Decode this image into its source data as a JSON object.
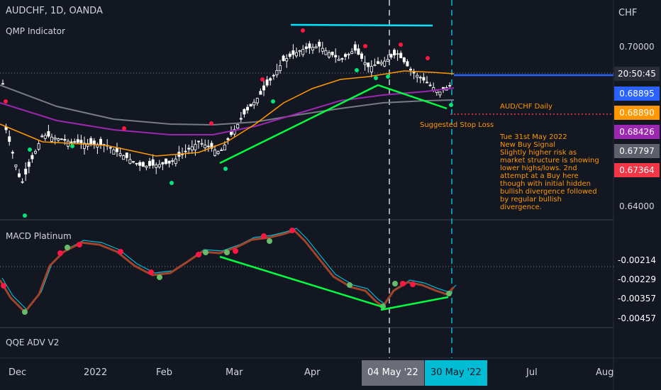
{
  "header": {
    "symbol": "AUDCHF, 1D, OANDA",
    "indicator": "QMP Indicator",
    "currency": "CHF"
  },
  "panels": {
    "macd_title": "MACD Platinum",
    "qqe_title": "QQE ADV V2"
  },
  "price_axis": {
    "ticks": [
      "0.70000",
      "0.64000"
    ]
  },
  "price_tags": [
    {
      "id": "time",
      "value": "20:50:45",
      "color": "#2a2e39"
    },
    {
      "id": "blue",
      "value": "0.68895",
      "color": "#2962ff"
    },
    {
      "id": "orange",
      "value": "0.68890",
      "color": "#ff9800"
    },
    {
      "id": "purple",
      "value": "0.68426",
      "color": "#9c27b0"
    },
    {
      "id": "gray",
      "value": "0.67797",
      "color": "#5d606b"
    },
    {
      "id": "red",
      "value": "0.67364",
      "color": "#f23645"
    }
  ],
  "macd_tags": [
    {
      "id": "m1",
      "value": "-0.00214",
      "color": "#ff0000"
    },
    {
      "id": "m2",
      "value": "-0.00229",
      "color": "#00bcd4"
    },
    {
      "id": "m3",
      "value": "-0.00357",
      "color": "#795548"
    },
    {
      "id": "m4",
      "value": "-0.00457",
      "color": "#4caf50"
    }
  ],
  "time_axis": {
    "labels": [
      "Dec",
      "2022",
      "Feb",
      "Mar",
      "Apr",
      "Jul",
      "Aug"
    ],
    "highlight_1": "04 May '22",
    "highlight_2": "30 May '22"
  },
  "annotation": {
    "title": "AUD/CHF Daily",
    "stop_loss": "Suggested Stop Loss",
    "lines": [
      "Tue 31st May 2022",
      "New Buy Signal",
      "Slightly higher risk as market structure is showing lower highs/lows. 2nd attempt at a Buy here though with initial hidden bullish divergence followed by regular bullish divergence."
    ]
  },
  "chart_data": {
    "type": "candlestick",
    "title": "AUDCHF, 1D, OANDA",
    "y_range": [
      0.635,
      0.712
    ],
    "close_approx": [
      {
        "x": "Dec",
        "y": 0.66
      },
      {
        "x": "2022",
        "y": 0.663
      },
      {
        "x": "Feb",
        "y": 0.657
      },
      {
        "x": "Mar",
        "y": 0.664
      },
      {
        "x": "Apr",
        "y": 0.698
      },
      {
        "x": "04 May '22",
        "y": 0.687
      },
      {
        "x": "30 May '22",
        "y": 0.6889
      }
    ],
    "colors": {
      "up": "#ffffff",
      "down": "#ffffff",
      "ema_orange": "#ff9800",
      "ma_purple": "#9c27b0",
      "ma_gray": "#787b86",
      "trend_green": "#00ff41",
      "resistance_cyan": "#00e5ff"
    }
  }
}
